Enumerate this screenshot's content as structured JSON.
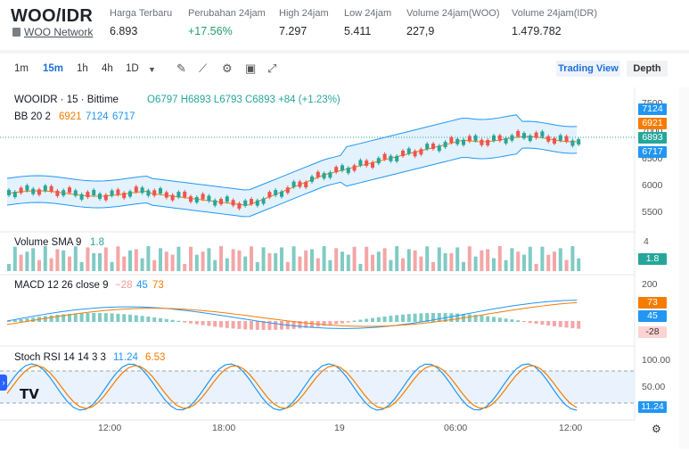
{
  "header": {
    "pair": "WOO/IDR",
    "network": "WOO Network",
    "stats": [
      {
        "label": "Harga Terbaru",
        "value": "6.893"
      },
      {
        "label": "Perubahan 24jam",
        "value": "+17.56%"
      },
      {
        "label": "High 24jam",
        "value": "7.297"
      },
      {
        "label": "Low 24jam",
        "value": "5.411"
      },
      {
        "label": "Volume 24jam(WOO)",
        "value": "227,9"
      },
      {
        "label": "Volume 24jam(IDR)",
        "value": "1.479.782"
      }
    ]
  },
  "toolbar": {
    "intervals": [
      "1m",
      "15m",
      "1h",
      "4h",
      "1D"
    ],
    "active": "15m",
    "tabs": {
      "tradingview": "Trading View",
      "depth": "Depth"
    }
  },
  "chart": {
    "title": "WOOIDR · 15 · Bittime",
    "ohlc": "O6797 H6893 L6793 C6893 +84 (+1.23%)",
    "bb_name": "BB 20 2",
    "bb_vals": [
      "6921",
      "7124",
      "6717"
    ],
    "y_ticks": [
      "7500",
      "7000",
      "6500",
      "6000",
      "5500"
    ],
    "price_tags": {
      "upper": "7124",
      "mid": "6921",
      "last": "6893",
      "lower": "6717"
    },
    "volume_label": "Volume SMA 9",
    "volume_val": "1.8",
    "volume_axis": "4",
    "volume_tag": "1.8",
    "macd_label": "MACD 12 26 close 9",
    "macd_vals": [
      "−28",
      "45",
      "73"
    ],
    "macd_axis": "200",
    "macd_tags": {
      "signal": "73",
      "macd": "45",
      "hist": "-28"
    },
    "rsi_label": "Stoch RSI 14 14 3 3",
    "rsi_vals": [
      "11.24",
      "6.53"
    ],
    "rsi_axis": [
      "100.00",
      "50.00"
    ],
    "rsi_tag": "11.24",
    "x_ticks": [
      "12:00",
      "18:00",
      "19",
      "06:00",
      "12:00"
    ]
  },
  "colors": {
    "up": "#26a69a",
    "down": "#ef5350",
    "blue": "#2196f3",
    "orange": "#f57c00",
    "band": "#e3f2fd"
  }
}
